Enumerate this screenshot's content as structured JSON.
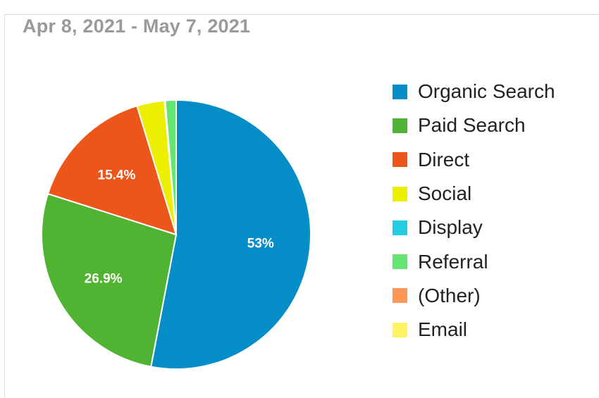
{
  "header": {
    "date_range": "Apr 8, 2021 - May 7, 2021"
  },
  "chart_data": {
    "type": "pie",
    "series": [
      {
        "name": "Organic Search",
        "value": 53.0,
        "color": "#058dc7",
        "label": "53%"
      },
      {
        "name": "Paid Search",
        "value": 26.9,
        "color": "#50b432",
        "label": "26.9%"
      },
      {
        "name": "Direct",
        "value": 15.4,
        "color": "#ed561b",
        "label": "15.4%"
      },
      {
        "name": "Social",
        "value": 3.3,
        "color": "#edef00",
        "label": ""
      },
      {
        "name": "Display",
        "value": 0.1,
        "color": "#24cbe5",
        "label": ""
      },
      {
        "name": "Referral",
        "value": 1.3,
        "color": "#64e572",
        "label": ""
      },
      {
        "name": "(Other)",
        "value": 0.0,
        "color": "#ff9655",
        "label": ""
      },
      {
        "name": "Email",
        "value": 0.0,
        "color": "#fff263",
        "label": ""
      }
    ],
    "legend_position": "right"
  }
}
